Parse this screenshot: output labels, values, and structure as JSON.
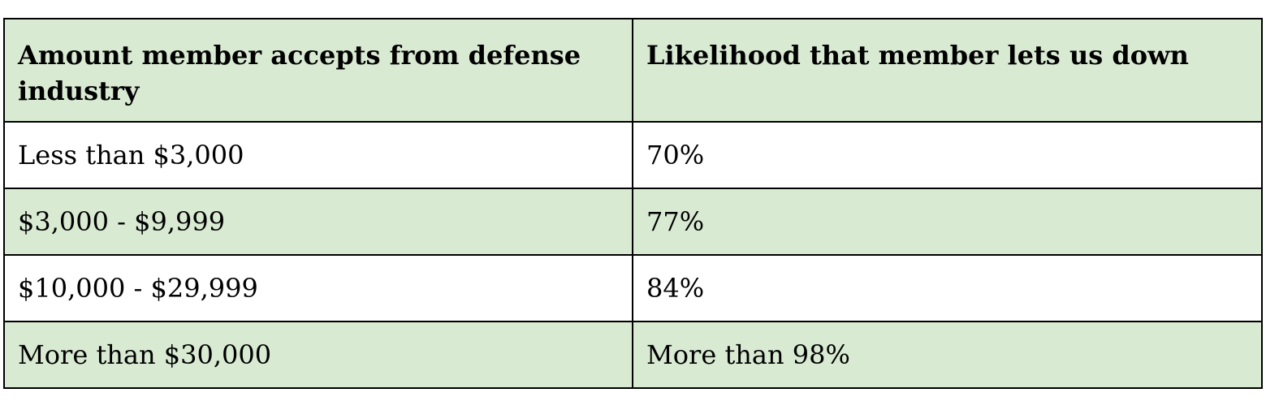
{
  "table": {
    "headers": [
      "Amount member accepts from defense industry",
      "Likelihood that member lets us down"
    ],
    "rows": [
      [
        "Less than $3,000",
        "70%"
      ],
      [
        "$3,000 - $9,999",
        "77%"
      ],
      [
        "$10,000 - $29,999",
        "84%"
      ],
      [
        "More than $30,000",
        "More than 98%"
      ]
    ]
  },
  "colors": {
    "header_bg": "#d9ead3",
    "shaded_row_bg": "#d9ead3",
    "plain_row_bg": "#ffffff",
    "border": "#000000"
  }
}
